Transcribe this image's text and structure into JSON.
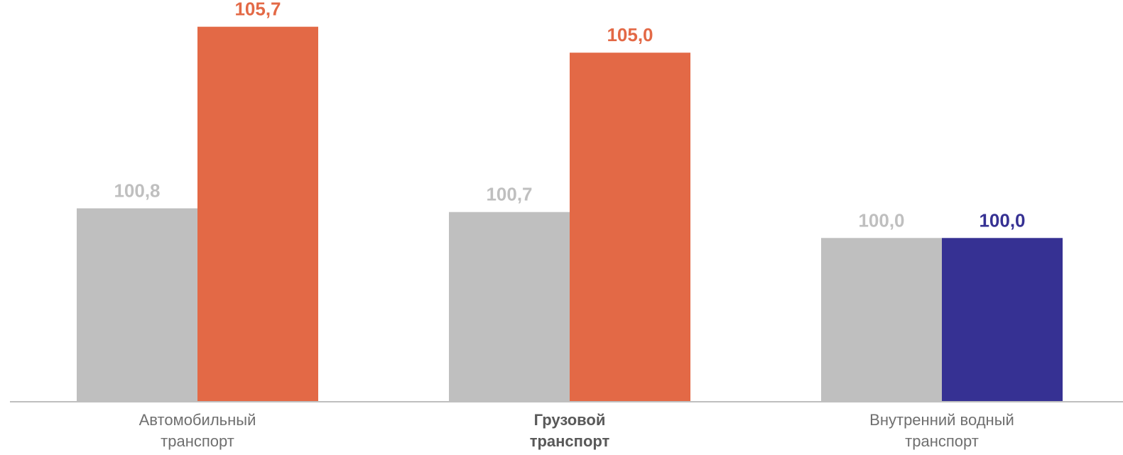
{
  "chart_data": {
    "type": "bar",
    "title": "",
    "xlabel": "",
    "ylabel": "",
    "ylim": [
      95.6,
      106.0
    ],
    "grid": false,
    "legend": "none",
    "categories": [
      {
        "lines": [
          "Автомобильный",
          "транспорт"
        ],
        "bold": false
      },
      {
        "lines": [
          "Грузовой",
          "транспорт"
        ],
        "bold": true
      },
      {
        "lines": [
          "Внутренний водный",
          "транспорт"
        ],
        "bold": false
      }
    ],
    "series": [
      {
        "values": [
          100.8,
          100.7,
          100.0
        ],
        "labels": [
          "100,8",
          "100,7",
          "100,0"
        ],
        "colors": [
          "#bfbfbf",
          "#bfbfbf",
          "#bfbfbf"
        ],
        "label_colors": [
          "#bfbfbf",
          "#bfbfbf",
          "#bfbfbf"
        ]
      },
      {
        "values": [
          105.7,
          105.0,
          100.0
        ],
        "labels": [
          "105,7",
          "105,0",
          "100,0"
        ],
        "colors": [
          "#e36946",
          "#e36946",
          "#363193"
        ],
        "label_colors": [
          "#e36946",
          "#e36946",
          "#363193"
        ]
      }
    ],
    "axis_color": "#bfbfbf"
  }
}
